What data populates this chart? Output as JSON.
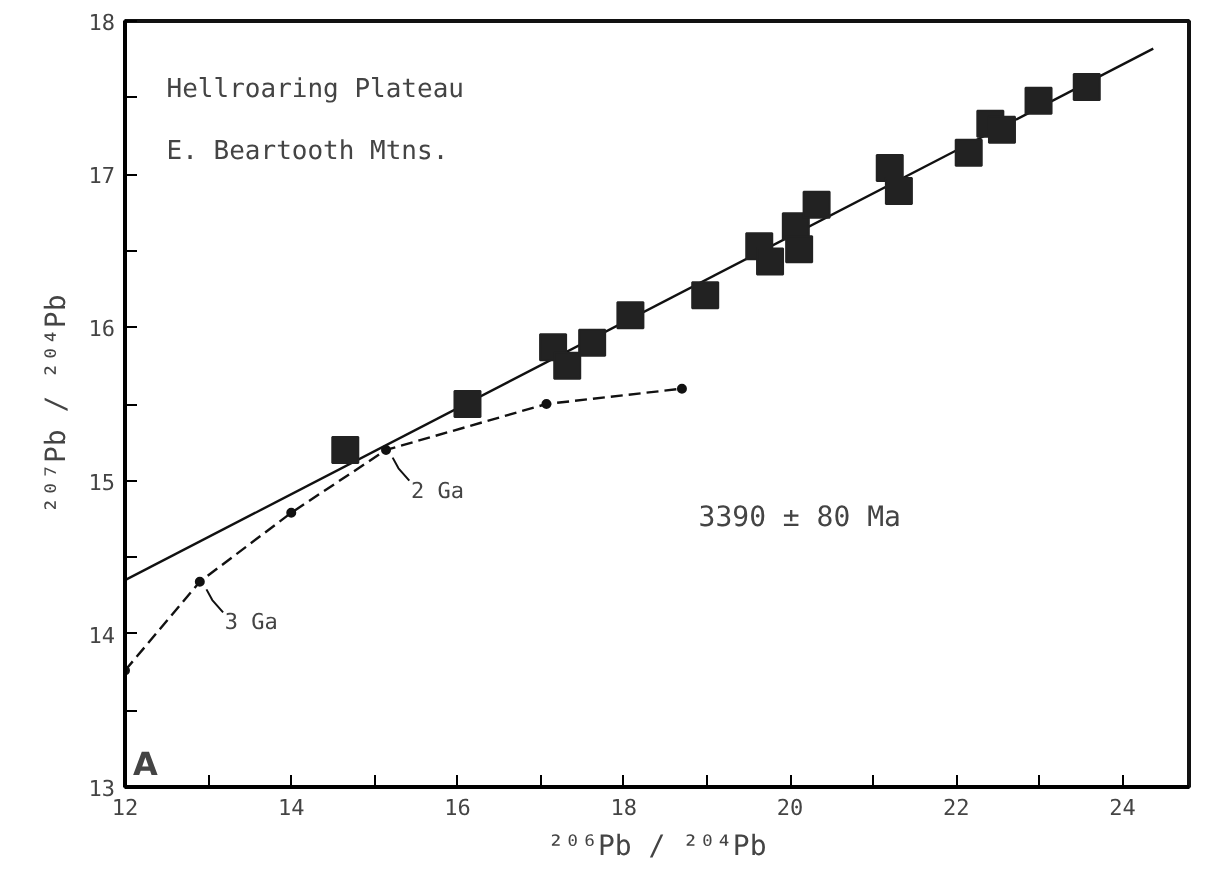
{
  "chart_data": {
    "type": "scatter",
    "xlabel": "²⁰⁶Pb / ²⁰⁴Pb",
    "ylabel": "²⁰⁷Pb / ²⁰⁴Pb",
    "xlim": [
      12,
      24.8
    ],
    "ylim": [
      13,
      18
    ],
    "xticks": [
      12,
      {
        "value": 13,
        "label": null
      },
      14,
      {
        "value": 15,
        "label": null
      },
      16,
      {
        "value": 17,
        "label": null
      },
      18,
      {
        "value": 19,
        "label": null
      },
      20,
      {
        "value": 21,
        "label": null
      },
      22,
      {
        "value": 23,
        "label": null
      },
      24
    ],
    "yticks": [
      13,
      {
        "value": 13.5,
        "label": null
      },
      14,
      {
        "value": 14.5,
        "label": null
      },
      15,
      {
        "value": 15.5,
        "label": null
      },
      16,
      {
        "value": 16.5,
        "label": null
      },
      17,
      {
        "value": 17.5,
        "label": null
      },
      18
    ],
    "grid": false,
    "series": [
      {
        "type": "line",
        "line_style": "solid",
        "marker": "none",
        "color": "#111111",
        "x": [
          12,
          24.37
        ],
        "values": [
          14.35,
          17.82
        ]
      },
      {
        "type": "line",
        "line_style": "dashed",
        "marker": "circle",
        "color": "#111111",
        "x": [
          12,
          12.9,
          14.0,
          15.14,
          17.07,
          18.7
        ],
        "values": [
          13.76,
          14.34,
          14.79,
          15.2,
          15.5,
          15.6
        ]
      },
      {
        "marker": "square",
        "color": "#222222",
        "x": [
          14.65,
          16.12,
          17.15,
          17.32,
          17.62,
          18.08,
          18.98,
          19.63,
          19.76,
          20.07,
          20.11,
          20.32,
          21.2,
          21.31,
          22.15,
          22.41,
          22.55,
          22.99,
          23.57
        ],
        "values": [
          15.2,
          15.5,
          15.87,
          15.75,
          15.9,
          16.08,
          16.21,
          16.53,
          16.43,
          16.66,
          16.51,
          16.8,
          17.04,
          16.89,
          17.14,
          17.33,
          17.29,
          17.48,
          17.57
        ]
      }
    ],
    "annotations": [
      "Hellroaring Plateau",
      "E. Beartooth Mtns.",
      "3390 ± 80 Ma",
      "A",
      {
        "text": "2 Ga",
        "x": 15.14,
        "y": 15.2
      },
      {
        "text": "3 Ga",
        "x": 12.9,
        "y": 14.34
      }
    ]
  }
}
